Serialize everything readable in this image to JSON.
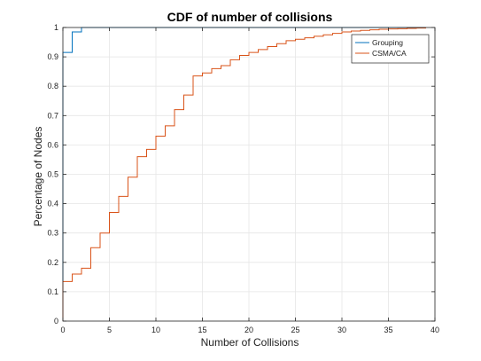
{
  "chart_data": {
    "type": "line",
    "title": "CDF of number of collisions",
    "xlabel": "Number of Collisions",
    "ylabel": "Percentage of Nodes",
    "xlim": [
      0,
      40
    ],
    "ylim": [
      0,
      1
    ],
    "xticks": [
      0,
      5,
      10,
      15,
      20,
      25,
      30,
      35,
      40
    ],
    "yticks": [
      0,
      0.1,
      0.2,
      0.3,
      0.4,
      0.5,
      0.6,
      0.7,
      0.8,
      0.9,
      1
    ],
    "grid": true,
    "legend": "top-right",
    "series": [
      {
        "name": "Grouping",
        "color": "#0072BD",
        "x": [
          0,
          1,
          2,
          39
        ],
        "y": [
          0.915,
          0.985,
          1.0,
          1.0
        ]
      },
      {
        "name": "CSMA/CA",
        "color": "#D95319",
        "x": [
          0,
          1,
          2,
          3,
          4,
          5,
          6,
          7,
          8,
          9,
          10,
          11,
          12,
          13,
          14,
          15,
          16,
          17,
          18,
          19,
          20,
          21,
          22,
          23,
          24,
          25,
          26,
          27,
          28,
          29,
          30,
          31,
          32,
          33,
          34,
          35,
          36,
          37,
          38,
          39
        ],
        "y": [
          0.135,
          0.16,
          0.18,
          0.25,
          0.3,
          0.37,
          0.425,
          0.49,
          0.56,
          0.585,
          0.63,
          0.665,
          0.72,
          0.77,
          0.835,
          0.845,
          0.86,
          0.87,
          0.89,
          0.905,
          0.915,
          0.925,
          0.935,
          0.945,
          0.955,
          0.96,
          0.965,
          0.97,
          0.975,
          0.98,
          0.985,
          0.988,
          0.99,
          0.992,
          0.994,
          0.995,
          0.996,
          0.997,
          0.998,
          1.0
        ]
      }
    ]
  }
}
